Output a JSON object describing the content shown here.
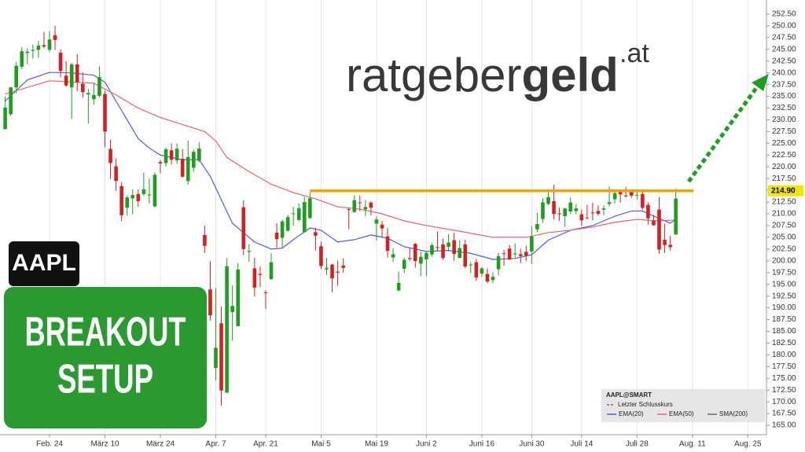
{
  "chart_data": {
    "type": "candlestick",
    "logo": {
      "part1": "ratgeber",
      "part2": "geld",
      "part3": ".at"
    },
    "badge": "AAPL",
    "setup_line1": "BREAKOUT",
    "setup_line2": "SETUP",
    "up_color": "#1e9e1e",
    "down_color": "#d42020",
    "grid": true,
    "ylim": [
      163,
      255.5
    ],
    "yticks": [
      {
        "value": 165,
        "label": "165.00"
      },
      {
        "value": 167.5,
        "label": "167.50"
      },
      {
        "value": 170,
        "label": "170.00"
      },
      {
        "value": 172.5,
        "label": "172.50"
      },
      {
        "value": 175,
        "label": "175.00"
      },
      {
        "value": 177.5,
        "label": "177.50"
      },
      {
        "value": 180,
        "label": "180.00"
      },
      {
        "value": 182.5,
        "label": "182.50"
      },
      {
        "value": 185,
        "label": "185.00"
      },
      {
        "value": 187.5,
        "label": "187.50"
      },
      {
        "value": 190,
        "label": "190.00"
      },
      {
        "value": 192.5,
        "label": "192.50"
      },
      {
        "value": 195,
        "label": "195.00"
      },
      {
        "value": 197.5,
        "label": "197.50"
      },
      {
        "value": 200,
        "label": "200.00"
      },
      {
        "value": 202.5,
        "label": "202.50"
      },
      {
        "value": 205,
        "label": "205.00"
      },
      {
        "value": 207.5,
        "label": "207.50"
      },
      {
        "value": 210,
        "label": "210.00"
      },
      {
        "value": 212.5,
        "label": "212.50"
      },
      {
        "value": 215,
        "label": "215.00"
      },
      {
        "value": 217.5,
        "label": "217.50"
      },
      {
        "value": 220,
        "label": "220.00"
      },
      {
        "value": 222.5,
        "label": "222.50"
      },
      {
        "value": 225,
        "label": "225.00"
      },
      {
        "value": 227.5,
        "label": "227.50"
      },
      {
        "value": 230,
        "label": "230.00"
      },
      {
        "value": 232.5,
        "label": "232.50"
      },
      {
        "value": 235,
        "label": "235.00"
      },
      {
        "value": 237.5,
        "label": "237.50"
      },
      {
        "value": 240,
        "label": "240.00"
      },
      {
        "value": 242.5,
        "label": "242.50"
      },
      {
        "value": 245,
        "label": "245.00"
      },
      {
        "value": 247.5,
        "label": "247.50"
      },
      {
        "value": 250,
        "label": "250.00"
      },
      {
        "value": 252.5,
        "label": "252.50"
      }
    ],
    "resistance": {
      "value": 214.9,
      "label": "214.90",
      "color": "#f5a300"
    },
    "categories": [
      null,
      null,
      null,
      null,
      null,
      null,
      null,
      null,
      "Feb. 24",
      null,
      null,
      null,
      null,
      null,
      null,
      null,
      null,
      null,
      "März 10",
      null,
      null,
      null,
      null,
      null,
      null,
      null,
      null,
      null,
      "März 24",
      null,
      null,
      null,
      null,
      null,
      null,
      null,
      null,
      null,
      "Apr. 7",
      null,
      null,
      null,
      null,
      null,
      null,
      null,
      null,
      "Apr. 21",
      null,
      null,
      null,
      null,
      null,
      null,
      null,
      null,
      null,
      "Mai 5",
      null,
      null,
      null,
      null,
      null,
      null,
      null,
      null,
      null,
      "Mai 19",
      null,
      null,
      null,
      null,
      null,
      null,
      null,
      null,
      "Juni 2",
      null,
      null,
      null,
      null,
      null,
      null,
      null,
      null,
      null,
      "Juni 16",
      null,
      null,
      null,
      null,
      null,
      null,
      null,
      null,
      "Juni 30",
      null,
      null,
      null,
      null,
      null,
      null,
      null,
      null,
      "Juli 14",
      null,
      null,
      null,
      null,
      null,
      null,
      null,
      null,
      null,
      "Juli 28",
      null,
      null,
      null,
      null,
      null,
      null,
      null,
      null,
      null,
      "Aug. 11",
      null,
      null,
      null,
      null,
      null,
      null,
      null,
      null,
      null,
      "Aug. 25",
      null,
      null,
      null
    ],
    "ohlc": [
      [
        228,
        235,
        228,
        232.6
      ],
      [
        231.2,
        237,
        230.8,
        236.9
      ],
      [
        236.9,
        242.3,
        235.6,
        241.5
      ],
      [
        241.3,
        245.5,
        240.8,
        244.6
      ],
      [
        244.2,
        245.2,
        241.8,
        244.5
      ],
      [
        244.7,
        246,
        243,
        244.9
      ],
      [
        244.9,
        246.8,
        243.2,
        245.8
      ],
      [
        245.9,
        248.7,
        245.2,
        245.6
      ],
      [
        244.9,
        248.9,
        244.4,
        247.1
      ],
      [
        248,
        250,
        244.9,
        247
      ],
      [
        244.3,
        244.98,
        239.1,
        240.4
      ],
      [
        239.4,
        242.5,
        237.1,
        237.3
      ],
      [
        236.9,
        242.1,
        230.2,
        241.8
      ],
      [
        241.8,
        244,
        236.1,
        238
      ],
      [
        237.7,
        240.1,
        234.7,
        235.9
      ],
      [
        235.4,
        236.6,
        229.2,
        235.7
      ],
      [
        234.4,
        237.9,
        233.2,
        235.3
      ],
      [
        235.1,
        241.4,
        234.8,
        239.1
      ],
      [
        235.5,
        236.2,
        224.2,
        227.5
      ],
      [
        223.8,
        225.8,
        217.4,
        220.8
      ],
      [
        220.1,
        221.8,
        214.9,
        217
      ],
      [
        215.9,
        216.8,
        208.4,
        209.7
      ],
      [
        211.3,
        213.9,
        209.6,
        213.5
      ],
      [
        213.3,
        215.2,
        209.9,
        214
      ],
      [
        214.2,
        215.2,
        211.5,
        212.7
      ],
      [
        214.2,
        218.8,
        213.8,
        215.2
      ],
      [
        213.99,
        217.5,
        212.2,
        214.1
      ],
      [
        211.6,
        218.8,
        211.3,
        218.3
      ],
      [
        221,
        221.5,
        218.6,
        220.7
      ],
      [
        220.8,
        224.1,
        220.1,
        223.75
      ],
      [
        223.5,
        225,
        220.5,
        221.5
      ],
      [
        221.4,
        224.99,
        220.6,
        223.85
      ],
      [
        221.7,
        223.8,
        217.7,
        217.9
      ],
      [
        217,
        225.6,
        216.2,
        222.1
      ],
      [
        219.8,
        223.7,
        218.9,
        223.2
      ],
      [
        221.3,
        225.2,
        221,
        223.9
      ],
      [
        205.5,
        207.5,
        201.7,
        203.2
      ],
      [
        193.9,
        199.9,
        187.3,
        188.4
      ],
      [
        177.2,
        194.2,
        174.6,
        181.5
      ],
      [
        186.7,
        190.3,
        169.2,
        172.4
      ],
      [
        171.95,
        200.6,
        171.9,
        198.85
      ],
      [
        189.1,
        194.8,
        183,
        190.4
      ],
      [
        186.1,
        199.5,
        186.1,
        198.15
      ],
      [
        211.4,
        212.9,
        201.2,
        202.5
      ],
      [
        201.9,
        203.5,
        199.8,
        202.1
      ],
      [
        198.4,
        200.7,
        192.4,
        194.3
      ],
      [
        197.2,
        198.8,
        194.4,
        196.98
      ],
      [
        193.3,
        193.8,
        189.8,
        193.2
      ],
      [
        196.1,
        201.6,
        195.97,
        199.7
      ],
      [
        206,
        208,
        202.8,
        204.6
      ],
      [
        204.9,
        208.8,
        202.9,
        208.4
      ],
      [
        206.4,
        209.75,
        206.2,
        209.3
      ],
      [
        210,
        211.5,
        207.5,
        210.1
      ],
      [
        208.7,
        212.2,
        208.4,
        211.2
      ],
      [
        206.1,
        213.6,
        206.1,
        212.5
      ],
      [
        209.1,
        214.6,
        208.9,
        213.3
      ],
      [
        206.1,
        206.99,
        202.2,
        205.35
      ],
      [
        203.1,
        204.1,
        198.2,
        198.9
      ],
      [
        198.2,
        200.65,
        197,
        198.5
      ],
      [
        199.2,
        199.4,
        193.25,
        196.25
      ],
      [
        197.7,
        200.05,
        194.7,
        197.5
      ],
      [
        199,
        200.5,
        197.5,
        198.5
      ],
      [
        210.97,
        211.3,
        206.75,
        210.8
      ],
      [
        210.4,
        213.9,
        210.2,
        212.9
      ],
      [
        212.4,
        213.9,
        210.6,
        212.3
      ],
      [
        210.95,
        212.96,
        209.5,
        211.45
      ],
      [
        212.4,
        212.6,
        209.7,
        211.3
      ],
      [
        207.9,
        209.5,
        204.3,
        208.8
      ],
      [
        207.7,
        208.5,
        205,
        206.9
      ],
      [
        205.2,
        207,
        200.7,
        202.1
      ],
      [
        200.7,
        202.75,
        199.7,
        201.4
      ],
      [
        193.7,
        197.7,
        193.5,
        195.3
      ],
      [
        198.3,
        200.7,
        197.4,
        200.2
      ],
      [
        200.6,
        202.7,
        199.9,
        200.4
      ],
      [
        203.6,
        203.8,
        198.5,
        199.95
      ],
      [
        199.4,
        201.96,
        196.8,
        200.85
      ],
      [
        200.3,
        201.96,
        196.8,
        201.7
      ],
      [
        201.35,
        203.8,
        200.95,
        203.3
      ],
      [
        202.9,
        206.2,
        202.1,
        202.8
      ],
      [
        203.5,
        204.75,
        200.15,
        200.6
      ],
      [
        203,
        205.7,
        202,
        203.9
      ],
      [
        204.4,
        206,
        200,
        201.45
      ],
      [
        200.6,
        204.35,
        200.6,
        202.7
      ],
      [
        203.5,
        204.5,
        198.4,
        198.8
      ],
      [
        199.1,
        199.7,
        197.4,
        199.2
      ],
      [
        199.7,
        200.4,
        195.7,
        196.45
      ],
      [
        197.3,
        198.7,
        196.6,
        198.4
      ],
      [
        197.2,
        198.4,
        195.2,
        195.6
      ],
      [
        195.9,
        197.6,
        195.2,
        196.6
      ],
      [
        198.2,
        201.7,
        196.9,
        201
      ],
      [
        201.6,
        202.3,
        198.96,
        201.5
      ],
      [
        202.6,
        203.4,
        200.2,
        200.3
      ],
      [
        201.45,
        203.7,
        200.6,
        201.56
      ],
      [
        201.4,
        202.6,
        199.5,
        201
      ],
      [
        201.9,
        203.2,
        200,
        201.08
      ],
      [
        202,
        207.4,
        199.3,
        205.17
      ],
      [
        206.7,
        210.2,
        206.1,
        207.82
      ],
      [
        208.9,
        213.3,
        208.1,
        212.44
      ],
      [
        212.1,
        214.65,
        211.8,
        213.55
      ],
      [
        212.7,
        216.2,
        208.8,
        209.95
      ],
      [
        210.1,
        211.4,
        208.45,
        210.01
      ],
      [
        209.5,
        211.3,
        207.2,
        211.14
      ],
      [
        210.5,
        213.5,
        210,
        212.41
      ],
      [
        210.6,
        212.1,
        209.9,
        211.16
      ],
      [
        209.9,
        210.9,
        207.5,
        208.62
      ],
      [
        209.2,
        211.9,
        208.9,
        209.11
      ],
      [
        210.3,
        212.4,
        208.6,
        210.16
      ],
      [
        210.6,
        211.8,
        209.6,
        210.02
      ],
      [
        210.9,
        211.8,
        209.7,
        211.18
      ],
      [
        212.1,
        215.8,
        211.6,
        212.48
      ],
      [
        213.1,
        214.95,
        212.2,
        214.4
      ],
      [
        215,
        215.15,
        212.4,
        214.15
      ],
      [
        213.9,
        215.7,
        213.5,
        213.76
      ],
      [
        214.7,
        215.2,
        213.4,
        213.88
      ],
      [
        214,
        214.85,
        213.06,
        214.05
      ],
      [
        214.2,
        214.8,
        210.8,
        211.27
      ],
      [
        211.9,
        212.4,
        207.7,
        209.05
      ],
      [
        208.5,
        209.8,
        207.5,
        207.57
      ],
      [
        210.9,
        213.6,
        201.5,
        202.38
      ],
      [
        204.5,
        207.9,
        201.7,
        203.35
      ],
      [
        203.4,
        205.3,
        202.2,
        202.92
      ],
      [
        205.6,
        215.4,
        205.6,
        213.25
      ],
      null,
      null,
      null,
      null,
      null,
      null,
      null,
      null,
      null,
      null,
      null,
      null,
      null,
      null,
      null,
      null
    ],
    "series": [
      {
        "name": "EMA(20)",
        "color": "#4a5ee8",
        "x": [
          0,
          4,
          8,
          12,
          16,
          18,
          20,
          22,
          24,
          26,
          28,
          32,
          35,
          37,
          39,
          41,
          43,
          45,
          48,
          50,
          52,
          55,
          57,
          60,
          63,
          66,
          69,
          72,
          76,
          80,
          84,
          88,
          92,
          95,
          98,
          102,
          106,
          110,
          113,
          115,
          118,
          120,
          121
        ],
        "values": [
          234,
          238.5,
          240.1,
          240,
          239.5,
          238,
          234,
          230,
          226,
          224,
          222.5,
          221.5,
          221.5,
          218,
          213,
          208,
          206,
          204,
          202.5,
          202.7,
          204.5,
          207,
          206.5,
          204,
          204.5,
          205.5,
          204.8,
          203,
          202,
          202.2,
          201.6,
          200.3,
          200.5,
          201.3,
          204.4,
          206.5,
          207.5,
          209.5,
          210.6,
          210.6,
          209,
          208,
          208.8
        ]
      },
      {
        "name": "EMA(50)",
        "color": "#e8636b",
        "x": [
          0,
          8,
          16,
          20,
          24,
          28,
          32,
          36,
          38,
          40,
          44,
          48,
          52,
          56,
          60,
          64,
          68,
          72,
          76,
          82,
          88,
          94,
          98,
          102,
          106,
          110,
          114,
          118,
          121
        ],
        "values": [
          235.5,
          238.3,
          237.8,
          235.3,
          232.5,
          230.5,
          229,
          227.5,
          225.5,
          222,
          219,
          216.3,
          214.5,
          213.2,
          211.5,
          211,
          210,
          208.5,
          207.5,
          206.3,
          205,
          205,
          206,
          206.5,
          207.2,
          208.2,
          208.8,
          208.5,
          208.7
        ]
      }
    ],
    "legend": {
      "title": "AAPL@SMART",
      "last_close": "Letzter Schlusskurs",
      "sma": "SMA(200)"
    }
  }
}
